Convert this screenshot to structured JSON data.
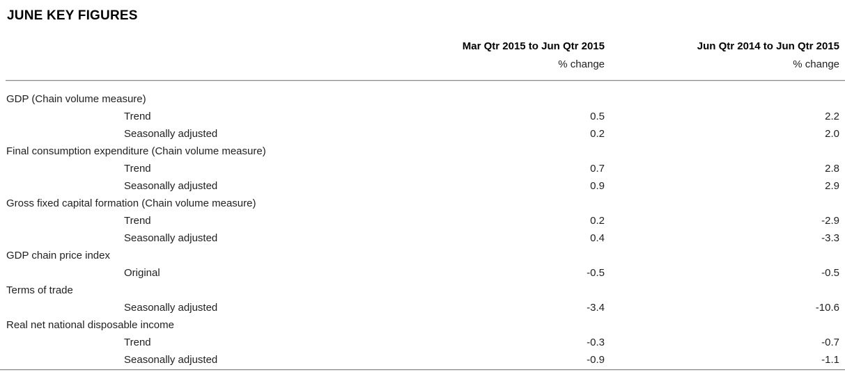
{
  "page": {
    "title": "JUNE KEY FIGURES"
  },
  "table": {
    "columns": [
      {
        "period": "Mar Qtr 2015 to Jun Qtr 2015",
        "unit": "% change"
      },
      {
        "period": "Jun Qtr 2014 to Jun Qtr 2015",
        "unit": "% change"
      }
    ],
    "rows": [
      {
        "label": "GDP (Chain volume measure)",
        "indent": false,
        "values": [
          "",
          ""
        ]
      },
      {
        "label": "Trend",
        "indent": true,
        "values": [
          "0.5",
          "2.2"
        ]
      },
      {
        "label": "Seasonally adjusted",
        "indent": true,
        "values": [
          "0.2",
          "2.0"
        ]
      },
      {
        "label": "Final consumption expenditure (Chain volume measure)",
        "indent": false,
        "values": [
          "",
          ""
        ]
      },
      {
        "label": "Trend",
        "indent": true,
        "values": [
          "0.7",
          "2.8"
        ]
      },
      {
        "label": "Seasonally adjusted",
        "indent": true,
        "values": [
          "0.9",
          "2.9"
        ]
      },
      {
        "label": "Gross fixed capital formation (Chain volume measure)",
        "indent": false,
        "values": [
          "",
          ""
        ]
      },
      {
        "label": "Trend",
        "indent": true,
        "values": [
          "0.2",
          "-2.9"
        ]
      },
      {
        "label": "Seasonally adjusted",
        "indent": true,
        "values": [
          "0.4",
          "-3.3"
        ]
      },
      {
        "label": "GDP chain price index",
        "indent": false,
        "values": [
          "",
          ""
        ]
      },
      {
        "label": "Original",
        "indent": true,
        "values": [
          "-0.5",
          "-0.5"
        ]
      },
      {
        "label": "Terms of trade",
        "indent": false,
        "values": [
          "",
          ""
        ]
      },
      {
        "label": "Seasonally adjusted",
        "indent": true,
        "values": [
          "-3.4",
          "-10.6"
        ]
      },
      {
        "label": "Real net national disposable income",
        "indent": false,
        "values": [
          "",
          ""
        ]
      },
      {
        "label": "Trend",
        "indent": true,
        "values": [
          "-0.3",
          "-0.7"
        ]
      },
      {
        "label": "Seasonally adjusted",
        "indent": true,
        "values": [
          "-0.9",
          "-1.1"
        ]
      }
    ]
  },
  "colors": {
    "text": "#212121",
    "heading": "#000000",
    "rule_dark": "#8a8a8a",
    "rule_light": "#dcdcdc",
    "background": "#ffffff"
  }
}
